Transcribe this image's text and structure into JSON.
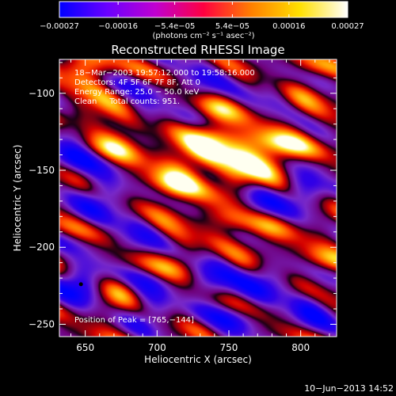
{
  "chart_data": {
    "type": "heatmap",
    "title": "Reconstructed RHESSI Image",
    "xlabel": "Heliocentric X (arcsec)",
    "ylabel": "Heliocentric Y (arcsec)",
    "xlim": [
      632,
      825
    ],
    "ylim": [
      -258,
      -78
    ],
    "x_ticks": [
      650,
      700,
      750,
      800
    ],
    "x_tick_labels": [
      "650",
      "700",
      "750",
      "800"
    ],
    "y_ticks": [
      -100,
      -150,
      -200,
      -250
    ],
    "y_tick_labels": [
      "−100",
      "−150",
      "−200",
      "−250"
    ],
    "colorbar": {
      "range": [
        -0.00027,
        0.00027
      ],
      "tick_values": [
        -0.00027,
        -0.00016,
        -5.4e-05,
        5.4e-05,
        0.00016,
        0.00027
      ],
      "tick_labels": [
        "−0.00027",
        "−0.00016",
        "−5.4e−05",
        "5.4e−05",
        "0.00016",
        "0.00027"
      ],
      "unit_label": "(photons cm⁻² s⁻¹ asec⁻²)",
      "colors": [
        "#0000ff",
        "#6a00ff",
        "#c000d0",
        "#ff0040",
        "#ff8000",
        "#ffe000",
        "#ffffff"
      ]
    },
    "annotations": [
      "18−Mar−2003 19:57:12.000 to 19:58:16.000",
      "Detectors: 4F 5F 6F 7F 8F, Att 0",
      "Energy Range: 25.0 − 50.0 keV",
      "Clean     Total counts: 951."
    ],
    "peak_label": "Position of Peak = [765,−144]",
    "peak_position": [
      765,
      -144
    ],
    "stripe_angle_deg": -24,
    "stripe_period_arcsec": 28,
    "blob_period_arcsec": 60,
    "bright_blobs": [
      {
        "x": 652,
        "y": -82,
        "v": 0.75
      },
      {
        "x": 655,
        "y": -118,
        "v": 0.45
      },
      {
        "x": 676,
        "y": -128,
        "v": 0.9
      },
      {
        "x": 705,
        "y": -168,
        "v": 0.45
      },
      {
        "x": 760,
        "y": -144,
        "v": 1.0
      },
      {
        "x": 780,
        "y": -140,
        "v": 0.85
      },
      {
        "x": 736,
        "y": -135,
        "v": 0.9
      },
      {
        "x": 716,
        "y": -152,
        "v": 0.75
      },
      {
        "x": 752,
        "y": -185,
        "v": 0.6
      },
      {
        "x": 773,
        "y": -192,
        "v": 0.5
      },
      {
        "x": 800,
        "y": -92,
        "v": 0.55
      },
      {
        "x": 712,
        "y": -210,
        "v": 0.45
      },
      {
        "x": 798,
        "y": -135,
        "v": 0.45
      },
      {
        "x": 816,
        "y": -212,
        "v": 0.5
      },
      {
        "x": 672,
        "y": -232,
        "v": 0.45
      },
      {
        "x": 741,
        "y": -112,
        "v": 0.45
      }
    ],
    "dark_blobs": [
      {
        "x": 643,
        "y": -135,
        "v": -0.8
      },
      {
        "x": 661,
        "y": -165,
        "v": -0.75
      },
      {
        "x": 647,
        "y": -224,
        "v": -0.95
      },
      {
        "x": 695,
        "y": -235,
        "v": -0.8
      },
      {
        "x": 739,
        "y": -218,
        "v": -0.75
      },
      {
        "x": 775,
        "y": -222,
        "v": -0.7
      },
      {
        "x": 808,
        "y": -238,
        "v": -0.75
      },
      {
        "x": 688,
        "y": -111,
        "v": -0.65
      },
      {
        "x": 732,
        "y": -92,
        "v": -0.6
      },
      {
        "x": 785,
        "y": -100,
        "v": -0.55
      },
      {
        "x": 802,
        "y": -160,
        "v": -0.8
      },
      {
        "x": 688,
        "y": -190,
        "v": -0.6
      },
      {
        "x": 751,
        "y": -252,
        "v": -0.55
      },
      {
        "x": 770,
        "y": -172,
        "v": -0.7
      }
    ]
  },
  "footer": {
    "timestamp": "10−Jun−2013 14:52"
  }
}
